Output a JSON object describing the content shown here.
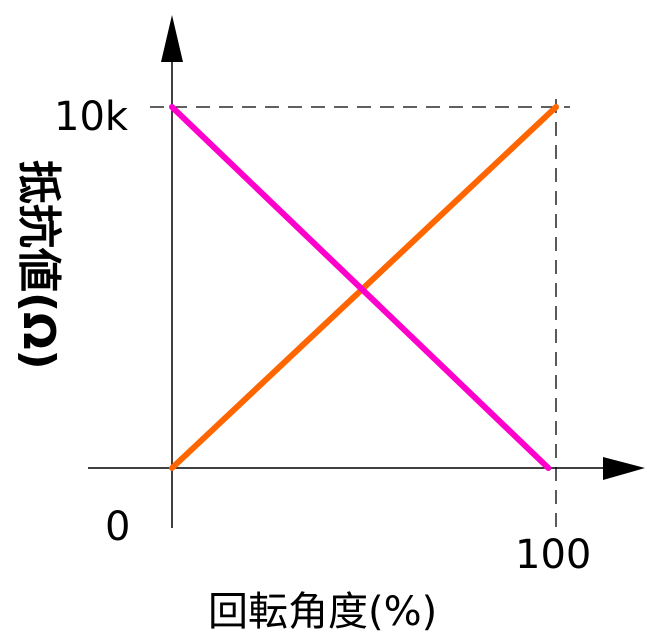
{
  "chart_data": {
    "type": "line",
    "title": "",
    "xlabel": "回転角度(%)",
    "ylabel": "抵抗値(Ω)",
    "x_ticks": [
      "0",
      "100"
    ],
    "y_ticks": [
      "0",
      "10k"
    ],
    "xlim": [
      0,
      100
    ],
    "ylim": [
      0,
      10000
    ],
    "grid": false,
    "guides": "dashed lines at x=100 and y=10k",
    "series": [
      {
        "color": "#ff6600",
        "x": [
          0,
          100
        ],
        "y": [
          0,
          10000
        ]
      },
      {
        "color": "#ff00cc",
        "x": [
          0,
          98
        ],
        "y": [
          10000,
          0
        ]
      }
    ]
  },
  "colors": {
    "axis": "#000000",
    "rising_line": "#ff6600",
    "falling_line": "#ff00cc"
  }
}
